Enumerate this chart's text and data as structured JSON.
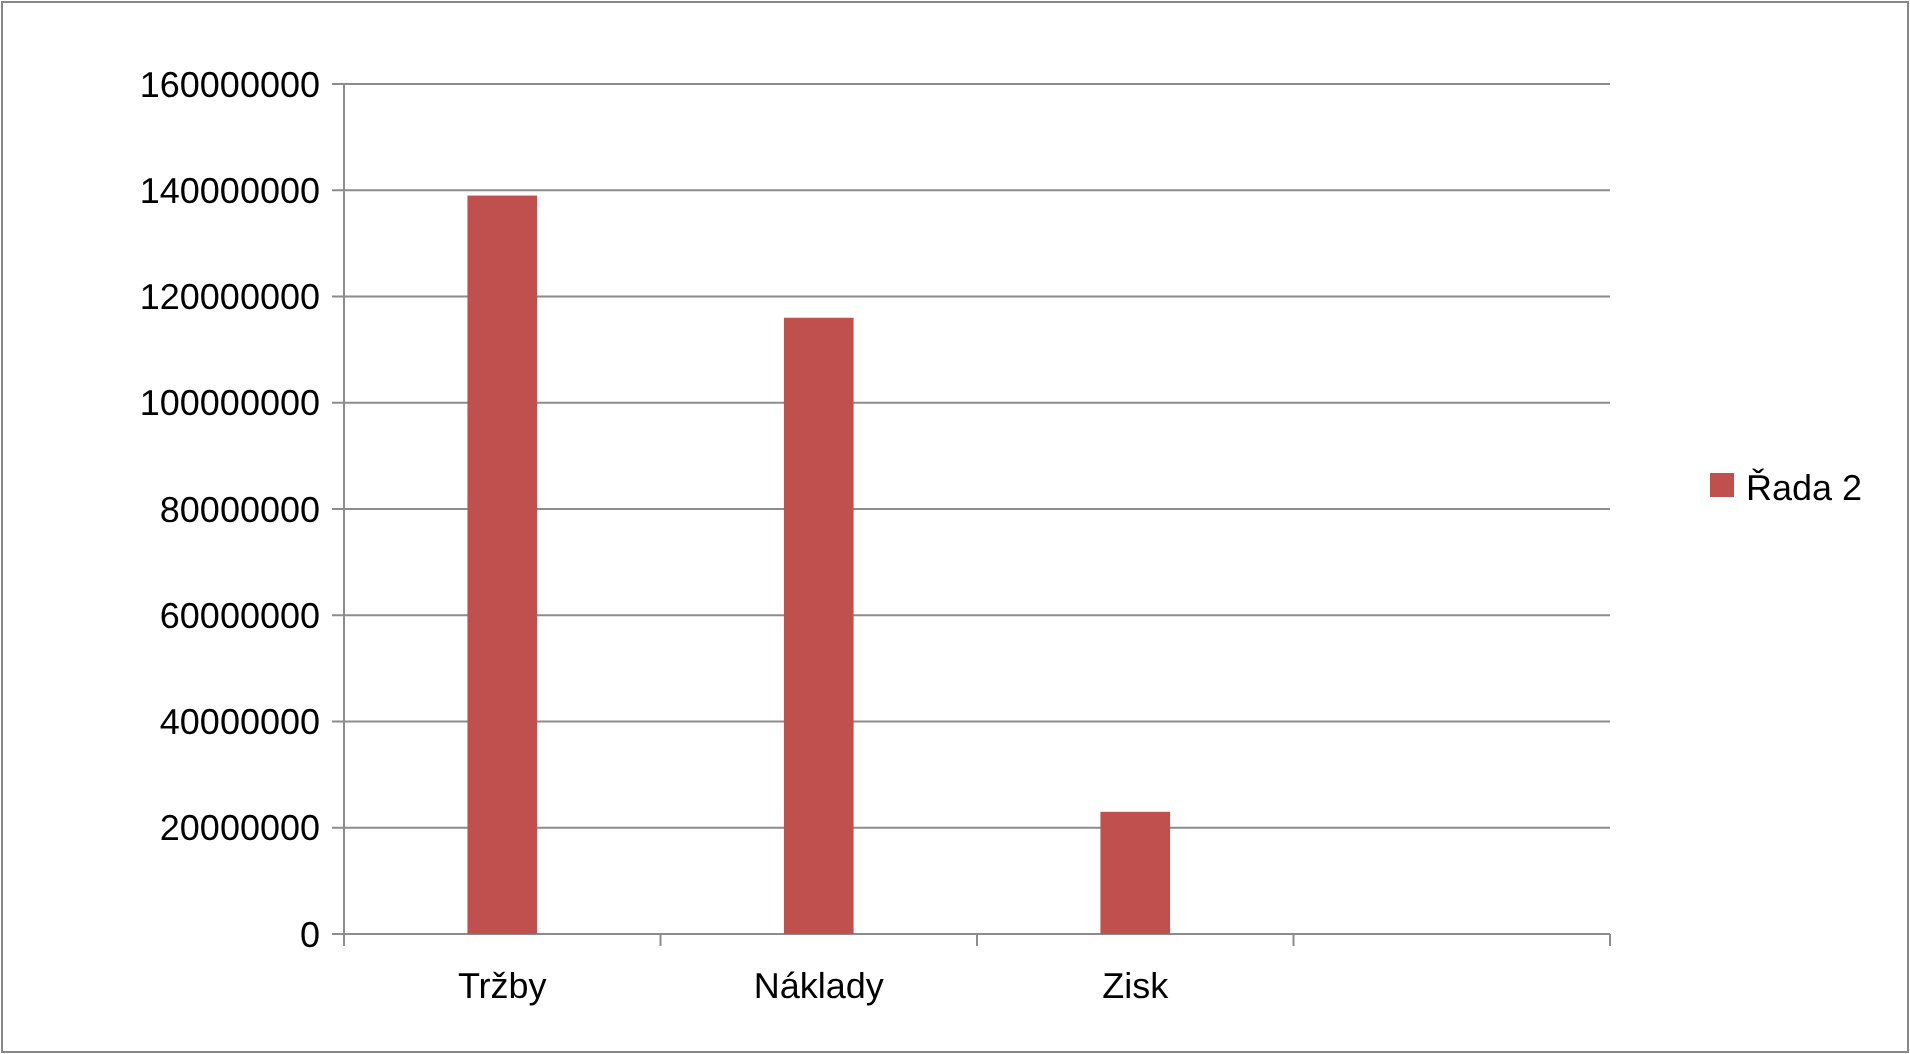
{
  "chart_data": {
    "type": "bar",
    "categories": [
      "Tržby",
      "Náklady",
      "Zisk",
      null
    ],
    "series": [
      {
        "name": "Řada 2",
        "color": "#c0504d",
        "values": [
          139000000,
          116000000,
          23000000,
          null
        ]
      }
    ],
    "ylim": [
      0,
      160000000
    ],
    "yticks": [
      0,
      20000000,
      40000000,
      60000000,
      80000000,
      100000000,
      120000000,
      140000000,
      160000000
    ],
    "grid": "y",
    "legend": "right"
  }
}
